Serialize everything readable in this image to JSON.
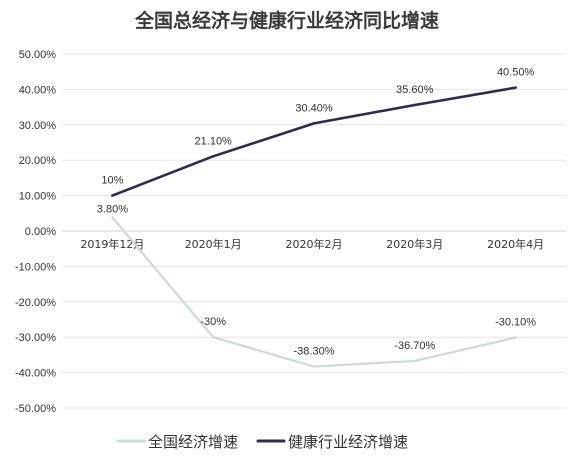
{
  "chart_data": {
    "type": "line",
    "title": "全国总经济与健康行业经济同比增速",
    "categories": [
      "2019年12月",
      "2020年1月",
      "2020年2月",
      "2020年3月",
      "2020年4月"
    ],
    "ylim": [
      -50,
      50
    ],
    "ytick_labels": [
      "50.00%",
      "40.00%",
      "30.00%",
      "20.00%",
      "10.00%",
      "0.00%",
      "-10.00%",
      "-20.00%",
      "-30.00%",
      "-40.00%",
      "-50.00%"
    ],
    "grid": true,
    "legend_position": "bottom",
    "series": [
      {
        "name": "全国经济增速",
        "values": [
          3.8,
          -30,
          -38.3,
          -36.7,
          -30.1
        ],
        "labels": [
          "3.80%",
          "-30%",
          "-38.30%",
          "-36.70%",
          "-30.10%"
        ],
        "color": "#c9dcd6"
      },
      {
        "name": "健康行业经济增速",
        "values": [
          10,
          21.1,
          30.4,
          35.6,
          40.5
        ],
        "labels": [
          "10%",
          "21.10%",
          "30.40%",
          "35.60%",
          "40.50%"
        ],
        "color": "#2d2b4f"
      }
    ]
  }
}
